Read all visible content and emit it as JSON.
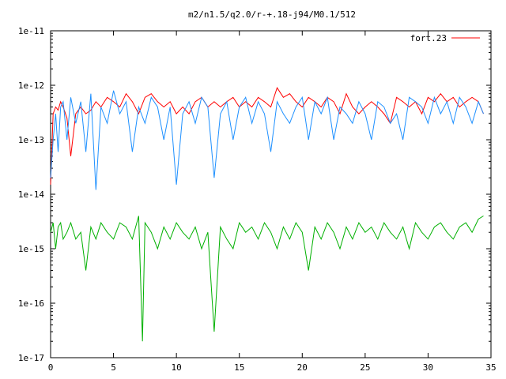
{
  "chart_data": {
    "type": "line",
    "title": "m2/n1.5/q2.0/r-+.18-j94/M0.1/512",
    "xlabel": "",
    "ylabel": "",
    "xlim": [
      0,
      35
    ],
    "ylim": [
      1e-17,
      1e-11
    ],
    "yscale": "log",
    "grid": false,
    "legend_position": "top-right",
    "x_ticks": [
      "0",
      "5",
      "10",
      "15",
      "20",
      "25",
      "30",
      "35"
    ],
    "y_ticks": [
      "1e-11",
      "1e-12",
      "1e-13",
      "1e-14",
      "1e-15",
      "1e-16",
      "1e-17"
    ],
    "x_tick_values": [
      0,
      5,
      10,
      15,
      20,
      25,
      30,
      35
    ],
    "y_tick_values": [
      1e-11,
      1e-12,
      1e-13,
      1e-14,
      1e-15,
      1e-16,
      1e-17
    ],
    "series": [
      {
        "name": "fort.23",
        "color": "#ff0000",
        "x": [
          0,
          0.2,
          0.4,
          0.6,
          0.8,
          1.0,
          1.3,
          1.6,
          2.0,
          2.4,
          2.8,
          3.2,
          3.6,
          4.0,
          4.5,
          5.0,
          5.5,
          6.0,
          6.5,
          7.0,
          7.5,
          8.0,
          8.5,
          9.0,
          9.5,
          10.0,
          10.5,
          11.0,
          11.5,
          12.0,
          12.5,
          13.0,
          13.5,
          14.0,
          14.5,
          15.0,
          15.5,
          16.0,
          16.5,
          17.0,
          17.5,
          18.0,
          18.5,
          19.0,
          19.5,
          20.0,
          20.5,
          21.0,
          21.5,
          22.0,
          22.5,
          23.0,
          23.5,
          24.0,
          24.5,
          25.0,
          25.5,
          26.0,
          26.5,
          27.0,
          27.5,
          28.0,
          28.5,
          29.0,
          29.5,
          30.0,
          30.5,
          31.0,
          31.5,
          32.0,
          32.5,
          33.0,
          33.5,
          34.0,
          34.4
        ],
        "y": [
          1.5e-14,
          3e-13,
          4e-13,
          3.5e-13,
          5e-13,
          4e-13,
          2.5e-13,
          5e-14,
          3e-13,
          4e-13,
          3e-13,
          3.5e-13,
          5e-13,
          4e-13,
          6e-13,
          5e-13,
          4e-13,
          7e-13,
          5e-13,
          3e-13,
          6e-13,
          7e-13,
          5e-13,
          4e-13,
          5e-13,
          3e-13,
          4e-13,
          3e-13,
          5e-13,
          6e-13,
          4e-13,
          5e-13,
          4e-13,
          5e-13,
          6e-13,
          4e-13,
          5e-13,
          4e-13,
          6e-13,
          5e-13,
          4e-13,
          9e-13,
          6e-13,
          7e-13,
          5e-13,
          4e-13,
          6e-13,
          5e-13,
          4e-13,
          6e-13,
          5e-13,
          3e-13,
          7e-13,
          4e-13,
          3e-13,
          4e-13,
          5e-13,
          4e-13,
          3e-13,
          2e-13,
          6e-13,
          5e-13,
          4e-13,
          5e-13,
          3e-13,
          6e-13,
          5e-13,
          7e-13,
          5e-13,
          6e-13,
          4e-13,
          5e-13,
          6e-13,
          5e-13,
          3e-13
        ]
      },
      {
        "color": "#1e90ff",
        "x": [
          0,
          0.2,
          0.4,
          0.6,
          0.8,
          1.0,
          1.3,
          1.6,
          2.0,
          2.4,
          2.8,
          3.2,
          3.6,
          4.0,
          4.5,
          5.0,
          5.5,
          6.0,
          6.5,
          7.0,
          7.5,
          8.0,
          8.5,
          9.0,
          9.5,
          10.0,
          10.5,
          11.0,
          11.5,
          12.0,
          12.5,
          13.0,
          13.5,
          14.0,
          14.5,
          15.0,
          15.5,
          16.0,
          16.5,
          17.0,
          17.5,
          18.0,
          18.5,
          19.0,
          19.5,
          20.0,
          20.5,
          21.0,
          21.5,
          22.0,
          22.5,
          23.0,
          23.5,
          24.0,
          24.5,
          25.0,
          25.5,
          26.0,
          26.5,
          27.0,
          27.5,
          28.0,
          28.5,
          29.0,
          29.5,
          30.0,
          30.5,
          31.0,
          31.5,
          32.0,
          32.5,
          33.0,
          33.5,
          34.0,
          34.4
        ],
        "y": [
          2e-14,
          1e-13,
          3e-13,
          6e-14,
          4e-13,
          5e-13,
          1e-13,
          6e-13,
          2e-13,
          5e-13,
          6e-14,
          7e-13,
          1.2e-14,
          4e-13,
          2e-13,
          8e-13,
          3e-13,
          5e-13,
          6e-14,
          4e-13,
          2e-13,
          6e-13,
          4e-13,
          1e-13,
          4e-13,
          1.5e-14,
          3e-13,
          5e-13,
          2e-13,
          6e-13,
          4e-13,
          2e-14,
          3e-13,
          5e-13,
          1e-13,
          4e-13,
          6e-13,
          2e-13,
          5e-13,
          3e-13,
          6e-14,
          5e-13,
          3e-13,
          2e-13,
          4e-13,
          6e-13,
          1e-13,
          5e-13,
          3e-13,
          6e-13,
          1e-13,
          4e-13,
          3e-13,
          2e-13,
          5e-13,
          3e-13,
          1e-13,
          5e-13,
          4e-13,
          2e-13,
          3e-13,
          1e-13,
          6e-13,
          5e-13,
          4e-13,
          2e-13,
          6e-13,
          3e-13,
          5e-13,
          2e-13,
          6e-13,
          4e-13,
          2e-13,
          5e-13,
          3e-13
        ]
      },
      {
        "color": "#00b000",
        "x": [
          0,
          0.2,
          0.4,
          0.6,
          0.8,
          1.0,
          1.3,
          1.6,
          2.0,
          2.4,
          2.8,
          3.2,
          3.6,
          4.0,
          4.5,
          5.0,
          5.5,
          6.0,
          6.5,
          7.0,
          7.3,
          7.5,
          8.0,
          8.5,
          9.0,
          9.5,
          10.0,
          10.5,
          11.0,
          11.5,
          12.0,
          12.5,
          13.0,
          13.5,
          14.0,
          14.5,
          15.0,
          15.5,
          16.0,
          16.5,
          17.0,
          17.5,
          18.0,
          18.5,
          19.0,
          19.5,
          20.0,
          20.5,
          21.0,
          21.5,
          22.0,
          22.5,
          23.0,
          23.5,
          24.0,
          24.5,
          25.0,
          25.5,
          26.0,
          26.5,
          27.0,
          27.5,
          28.0,
          28.5,
          29.0,
          29.5,
          30.0,
          30.5,
          31.0,
          31.5,
          32.0,
          32.5,
          33.0,
          33.5,
          34.0,
          34.4
        ],
        "y": [
          2e-15,
          3e-15,
          1e-15,
          2.5e-15,
          3e-15,
          1.5e-15,
          2e-15,
          3e-15,
          1.5e-15,
          2e-15,
          4e-16,
          2.5e-15,
          1.5e-15,
          3e-15,
          2e-15,
          1.5e-15,
          3e-15,
          2.5e-15,
          1.5e-15,
          4e-15,
          2e-17,
          3e-15,
          2e-15,
          1e-15,
          2.5e-15,
          1.5e-15,
          3e-15,
          2e-15,
          1.5e-15,
          2.5e-15,
          1e-15,
          2e-15,
          3e-17,
          2.5e-15,
          1.5e-15,
          1e-15,
          3e-15,
          2e-15,
          2.5e-15,
          1.5e-15,
          3e-15,
          2e-15,
          1e-15,
          2.5e-15,
          1.5e-15,
          3e-15,
          2e-15,
          4e-16,
          2.5e-15,
          1.5e-15,
          3e-15,
          2e-15,
          1e-15,
          2.5e-15,
          1.5e-15,
          3e-15,
          2e-15,
          2.5e-15,
          1.5e-15,
          3e-15,
          2e-15,
          1.5e-15,
          2.5e-15,
          1e-15,
          3e-15,
          2e-15,
          1.5e-15,
          2.5e-15,
          3e-15,
          2e-15,
          1.5e-15,
          2.5e-15,
          3e-15,
          2e-15,
          3.5e-15,
          4e-15
        ]
      }
    ]
  }
}
